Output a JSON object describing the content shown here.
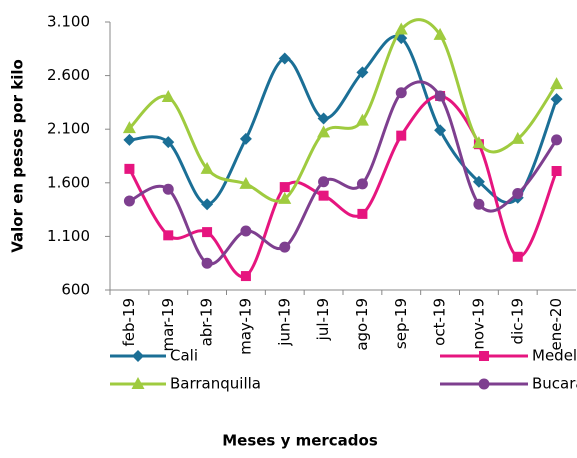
{
  "chart_data": {
    "type": "line",
    "xlabel": "Meses  y mercados",
    "ylabel": "Valor en pesos por kilo",
    "categories": [
      "feb-19",
      "mar-19",
      "abr-19",
      "may-19",
      "jun-19",
      "jul-19",
      "ago-19",
      "sep-19",
      "oct-19",
      "nov-19",
      "dic-19",
      "ene-20"
    ],
    "series": [
      {
        "name": "Cali",
        "color": "#1b6f96",
        "marker": "diamond",
        "values": [
          2000,
          1980,
          1400,
          2010,
          2760,
          2200,
          2630,
          2950,
          2090,
          1610,
          1460,
          2380
        ]
      },
      {
        "name": "Medellín",
        "color": "#e6157f",
        "marker": "square",
        "values": [
          1730,
          1110,
          1140,
          730,
          1560,
          1480,
          1310,
          2040,
          2410,
          1960,
          910,
          1710
        ]
      },
      {
        "name": "Barranquilla",
        "color": "#9fcb3f",
        "marker": "triangle",
        "values": [
          2110,
          2400,
          1730,
          1590,
          1450,
          2070,
          2180,
          3030,
          2980,
          1970,
          2010,
          2520
        ]
      },
      {
        "name": "Bucaramanga",
        "color": "#7e3f8f",
        "marker": "circle",
        "values": [
          1430,
          1540,
          850,
          1150,
          1000,
          1610,
          1590,
          2440,
          2410,
          1400,
          1500,
          2000
        ]
      }
    ],
    "ylim": [
      600,
      3100
    ],
    "yticks": [
      600,
      {
        "value": 1100,
        "label": "1.100"
      },
      {
        "value": 1600,
        "label": "1.600"
      },
      {
        "value": 2100,
        "label": "2.100"
      },
      {
        "value": 2600,
        "label": "2.600"
      },
      {
        "value": 3100,
        "label": "3.100"
      }
    ],
    "smooth": true
  }
}
